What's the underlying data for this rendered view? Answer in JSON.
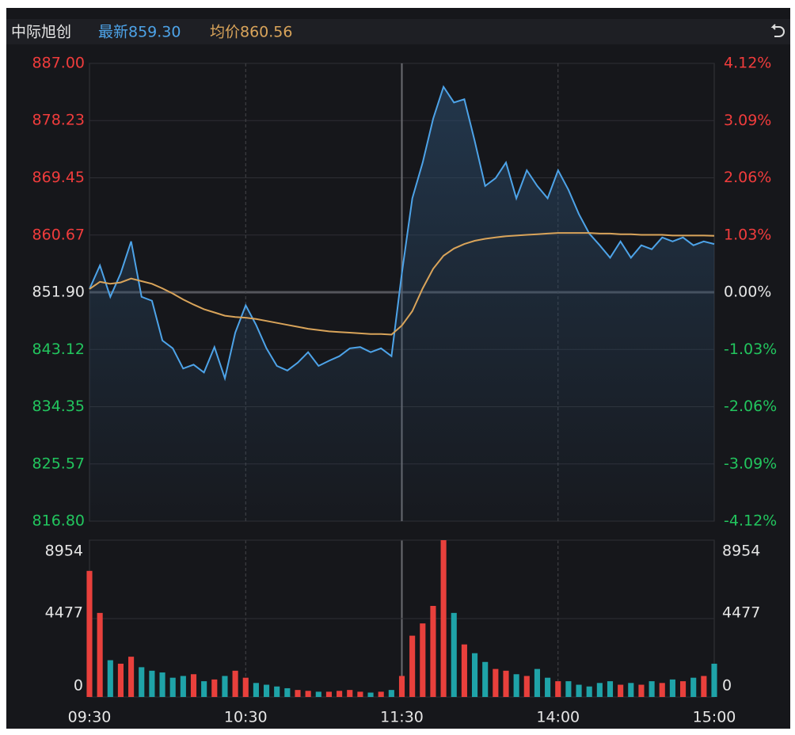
{
  "header": {
    "name": "中际旭创",
    "latest": "最新859.30",
    "average": "均价860.56"
  },
  "chart_data": {
    "type": "intraday",
    "x": [
      0,
      4,
      8,
      12,
      16,
      20,
      24,
      28,
      32,
      36,
      40,
      44,
      48,
      52,
      56,
      60,
      64,
      68,
      72,
      76,
      80,
      84,
      88,
      92,
      96,
      100,
      104,
      108,
      112,
      116,
      120,
      124,
      128,
      132,
      136,
      140,
      144,
      148,
      152,
      156,
      160,
      164,
      168,
      172,
      176,
      180,
      184,
      188,
      192,
      196,
      200,
      204,
      208,
      212,
      216,
      220,
      224,
      228,
      232,
      236,
      240
    ],
    "xlim": [
      0,
      240
    ],
    "xticks": [
      {
        "value": 0,
        "label": "09:30"
      },
      {
        "value": 60,
        "label": "10:30"
      },
      {
        "value": 120,
        "label": "11:30"
      },
      {
        "value": 180,
        "label": "14:00"
      },
      {
        "value": 240,
        "label": "15:00"
      }
    ],
    "series": [
      {
        "name": "最新",
        "color": "#4da3e8",
        "values": [
          852.4,
          856.0,
          851.2,
          854.8,
          859.7,
          851.2,
          850.6,
          844.5,
          843.3,
          840.2,
          840.8,
          839.6,
          843.5,
          838.7,
          845.7,
          849.9,
          846.9,
          843.3,
          840.6,
          839.9,
          841.1,
          842.7,
          840.6,
          841.4,
          842.1,
          843.3,
          843.5,
          842.7,
          843.3,
          842.1,
          854.8,
          866.3,
          871.8,
          878.5,
          883.4,
          881.0,
          881.5,
          875.1,
          868.2,
          869.4,
          871.8,
          866.3,
          870.6,
          868.2,
          866.3,
          870.6,
          867.6,
          863.9,
          860.9,
          859.1,
          857.2,
          859.7,
          857.2,
          859.1,
          858.5,
          860.3,
          859.7,
          860.3,
          859.1,
          859.7,
          859.3
        ]
      },
      {
        "name": "均价",
        "color": "#d9a45a",
        "values": [
          852.4,
          853.5,
          853.2,
          853.4,
          854.0,
          853.6,
          853.2,
          852.5,
          851.7,
          850.8,
          850.0,
          849.3,
          848.8,
          848.3,
          848.1,
          848.0,
          847.8,
          847.5,
          847.2,
          846.9,
          846.6,
          846.3,
          846.1,
          845.9,
          845.8,
          845.7,
          845.6,
          845.5,
          845.5,
          845.4,
          846.8,
          849.0,
          852.5,
          855.5,
          857.5,
          858.6,
          859.3,
          859.8,
          860.1,
          860.3,
          860.5,
          860.6,
          860.7,
          860.8,
          860.9,
          861.0,
          861.0,
          861.0,
          861.0,
          860.9,
          860.9,
          860.8,
          860.8,
          860.7,
          860.7,
          860.7,
          860.6,
          860.6,
          860.6,
          860.6,
          860.56
        ]
      }
    ],
    "ylim": [
      816.8,
      887
    ],
    "yticks": [
      {
        "value": 887,
        "label": "887.00"
      },
      {
        "value": 878.23,
        "label": "878.23"
      },
      {
        "value": 869.45,
        "label": "869.45"
      },
      {
        "value": 860.67,
        "label": "860.67"
      },
      {
        "value": 851.9,
        "label": "851.90"
      },
      {
        "value": 843.12,
        "label": "843.12"
      },
      {
        "value": 834.35,
        "label": "834.35"
      },
      {
        "value": 825.57,
        "label": "825.57"
      },
      {
        "value": 816.8,
        "label": "816.80"
      }
    ],
    "y2lim": [
      -4.12,
      4.12
    ],
    "y2ticks": [
      {
        "value": 4.12,
        "label": "4.12%"
      },
      {
        "value": 3.09,
        "label": "3.09%"
      },
      {
        "value": 2.06,
        "label": "2.06%"
      },
      {
        "value": 1.03,
        "label": "1.03%"
      },
      {
        "value": 0,
        "label": "0.00%"
      },
      {
        "value": -1.03,
        "label": "-1.03%"
      },
      {
        "value": -2.06,
        "label": "-2.06%"
      },
      {
        "value": -3.09,
        "label": "-3.09%"
      },
      {
        "value": -4.12,
        "label": "-4.12%"
      }
    ],
    "volume": {
      "up_color": "#e8403c",
      "down_color": "#1fa3a8",
      "values": [
        7200,
        4800,
        2100,
        1900,
        2300,
        1700,
        1500,
        1400,
        1100,
        1200,
        1300,
        900,
        1000,
        1200,
        1500,
        1100,
        800,
        700,
        600,
        500,
        400,
        350,
        300,
        300,
        350,
        400,
        300,
        250,
        300,
        400,
        1200,
        3500,
        4200,
        5200,
        8954,
        4800,
        3000,
        2500,
        2000,
        1600,
        1500,
        1300,
        1200,
        1600,
        1100,
        900,
        900,
        700,
        600,
        800,
        900,
        700,
        800,
        700,
        900,
        800,
        1000,
        900,
        1100,
        1200,
        1900
      ],
      "ylim": [
        0,
        8954
      ],
      "yticks": [
        0,
        4477,
        8954
      ]
    }
  }
}
